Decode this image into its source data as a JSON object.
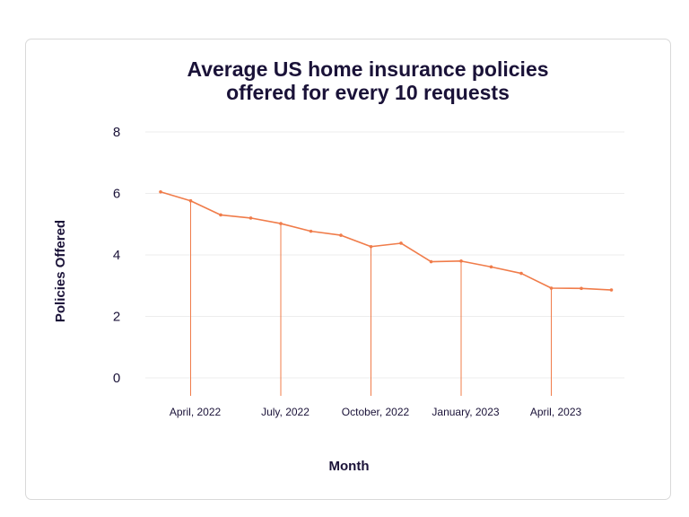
{
  "chart_data": {
    "type": "line",
    "title_line1": "Average US home insurance policies",
    "title_line2": "offered for every 10 requests",
    "title": "Average US home insurance policies offered for every 10 requests",
    "xlabel": "Month",
    "ylabel": "Policies Offered",
    "ylim": [
      0,
      8
    ],
    "yticks": [
      "0",
      "2",
      "4",
      "6",
      "8"
    ],
    "grid": true,
    "x": [
      "2022-03",
      "2022-04",
      "2022-05",
      "2022-06",
      "2022-07",
      "2022-08",
      "2022-09",
      "2022-10",
      "2022-11",
      "2022-12",
      "2023-01",
      "2023-02",
      "2023-03",
      "2023-04",
      "2023-05",
      "2023-06"
    ],
    "values": [
      6.05,
      5.76,
      5.3,
      5.2,
      5.02,
      4.77,
      4.64,
      4.27,
      4.38,
      3.78,
      3.8,
      3.61,
      3.4,
      2.92,
      2.91,
      2.86
    ],
    "x_tick_labels": [
      {
        "label": "April, 2022",
        "index": 1
      },
      {
        "label": "July, 2022",
        "index": 4
      },
      {
        "label": "October, 2022",
        "index": 7
      },
      {
        "label": "January, 2023",
        "index": 10
      },
      {
        "label": "April, 2023",
        "index": 13
      }
    ],
    "colors": {
      "line": "#f07c4a",
      "grid": "#ededed",
      "text": "#1a1238"
    }
  }
}
